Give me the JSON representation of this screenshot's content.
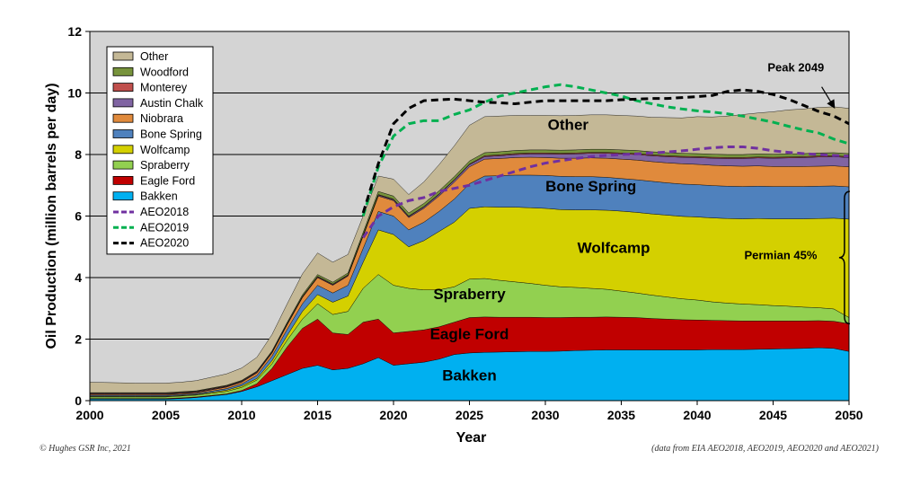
{
  "chart_data": {
    "type": "area",
    "xlabel": "Year",
    "ylabel": "Oil Production (million barrels per day)",
    "xlim": [
      2000,
      2050
    ],
    "ylim": [
      0,
      12
    ],
    "x_ticks": [
      2000,
      2005,
      2010,
      2015,
      2020,
      2025,
      2030,
      2035,
      2040,
      2045,
      2050
    ],
    "x_tick_labels": [
      "2000",
      "2005",
      "2010",
      "2015",
      "2020",
      "2025",
      "2030",
      "2035",
      "2040",
      "2045",
      "2050"
    ],
    "y_ticks": [
      0,
      2,
      4,
      6,
      8,
      10,
      12
    ],
    "y_tick_labels": [
      "0",
      "2",
      "4",
      "6",
      "8",
      "10",
      "12"
    ],
    "grid": "horizontal",
    "background_color": "#d4d4d4",
    "legend_position": "top-left",
    "years": [
      2000,
      2001,
      2002,
      2003,
      2004,
      2005,
      2006,
      2007,
      2008,
      2009,
      2010,
      2011,
      2012,
      2013,
      2014,
      2015,
      2016,
      2017,
      2018,
      2019,
      2020,
      2021,
      2022,
      2023,
      2024,
      2025,
      2026,
      2027,
      2028,
      2029,
      2030,
      2031,
      2032,
      2033,
      2034,
      2035,
      2036,
      2037,
      2038,
      2039,
      2040,
      2041,
      2042,
      2043,
      2044,
      2045,
      2046,
      2047,
      2048,
      2049,
      2050
    ],
    "stack_series": [
      {
        "name": "Bakken",
        "label": "Bakken",
        "color": "#00b0f0",
        "values": [
          0.05,
          0.05,
          0.05,
          0.05,
          0.05,
          0.05,
          0.07,
          0.1,
          0.15,
          0.2,
          0.3,
          0.45,
          0.65,
          0.85,
          1.05,
          1.15,
          1.0,
          1.05,
          1.2,
          1.4,
          1.15,
          1.2,
          1.25,
          1.35,
          1.5,
          1.55,
          1.57,
          1.58,
          1.59,
          1.6,
          1.6,
          1.61,
          1.63,
          1.64,
          1.65,
          1.65,
          1.65,
          1.65,
          1.65,
          1.65,
          1.65,
          1.66,
          1.66,
          1.66,
          1.67,
          1.68,
          1.69,
          1.7,
          1.72,
          1.7,
          1.6
        ]
      },
      {
        "name": "Eagle Ford",
        "label": "Eagle Ford",
        "color": "#c00000",
        "values": [
          0.02,
          0.02,
          0.02,
          0.02,
          0.02,
          0.02,
          0.02,
          0.02,
          0.02,
          0.02,
          0.03,
          0.1,
          0.4,
          0.9,
          1.3,
          1.5,
          1.2,
          1.1,
          1.35,
          1.25,
          1.05,
          1.05,
          1.05,
          1.05,
          1.05,
          1.15,
          1.15,
          1.13,
          1.12,
          1.11,
          1.1,
          1.09,
          1.08,
          1.07,
          1.07,
          1.06,
          1.05,
          1.02,
          1.0,
          0.98,
          0.97,
          0.95,
          0.94,
          0.93,
          0.92,
          0.91,
          0.9,
          0.89,
          0.88,
          0.88,
          0.9
        ]
      },
      {
        "name": "Spraberry",
        "label": "Spraberry",
        "color": "#92d050",
        "values": [
          0.05,
          0.05,
          0.05,
          0.05,
          0.05,
          0.05,
          0.06,
          0.06,
          0.07,
          0.08,
          0.1,
          0.12,
          0.15,
          0.22,
          0.3,
          0.5,
          0.6,
          0.75,
          1.1,
          1.45,
          1.55,
          1.4,
          1.3,
          1.2,
          1.15,
          1.25,
          1.25,
          1.2,
          1.15,
          1.1,
          1.05,
          1.0,
          0.97,
          0.94,
          0.9,
          0.85,
          0.8,
          0.76,
          0.72,
          0.68,
          0.65,
          0.6,
          0.57,
          0.55,
          0.53,
          0.5,
          0.48,
          0.45,
          0.42,
          0.4,
          0.2
        ]
      },
      {
        "name": "Wolfcamp",
        "label": "Wolfcamp",
        "color": "#d4d000",
        "values": [
          0.02,
          0.02,
          0.02,
          0.02,
          0.02,
          0.02,
          0.02,
          0.02,
          0.03,
          0.04,
          0.05,
          0.05,
          0.1,
          0.15,
          0.25,
          0.3,
          0.4,
          0.5,
          0.85,
          1.45,
          1.65,
          1.35,
          1.6,
          1.9,
          2.1,
          2.3,
          2.33,
          2.38,
          2.43,
          2.46,
          2.5,
          2.51,
          2.52,
          2.55,
          2.57,
          2.6,
          2.62,
          2.64,
          2.66,
          2.68,
          2.7,
          2.73,
          2.75,
          2.77,
          2.8,
          2.82,
          2.84,
          2.87,
          2.9,
          2.95,
          3.2
        ]
      },
      {
        "name": "Bone Spring",
        "label": "Bone Spring",
        "color": "#4f81bd",
        "values": [
          0.03,
          0.03,
          0.03,
          0.03,
          0.03,
          0.03,
          0.03,
          0.03,
          0.04,
          0.05,
          0.06,
          0.1,
          0.15,
          0.2,
          0.25,
          0.3,
          0.3,
          0.35,
          0.45,
          0.6,
          0.6,
          0.55,
          0.6,
          0.65,
          0.75,
          0.8,
          1.0,
          1.02,
          1.04,
          1.06,
          1.07,
          1.08,
          1.08,
          1.08,
          1.07,
          1.06,
          1.06,
          1.06,
          1.05,
          1.05,
          1.05,
          1.05,
          1.05,
          1.05,
          1.05,
          1.05,
          1.05,
          1.05,
          1.05,
          1.05,
          1.05
        ]
      },
      {
        "name": "Niobrara",
        "label": "Niobrara",
        "color": "#e08a3c",
        "values": [
          0.03,
          0.03,
          0.03,
          0.03,
          0.03,
          0.03,
          0.03,
          0.03,
          0.04,
          0.05,
          0.06,
          0.08,
          0.1,
          0.15,
          0.2,
          0.25,
          0.25,
          0.3,
          0.4,
          0.5,
          0.5,
          0.4,
          0.45,
          0.5,
          0.55,
          0.55,
          0.55,
          0.56,
          0.57,
          0.58,
          0.58,
          0.59,
          0.6,
          0.61,
          0.62,
          0.63,
          0.64,
          0.64,
          0.65,
          0.66,
          0.66,
          0.66,
          0.66,
          0.66,
          0.66,
          0.65,
          0.65,
          0.65,
          0.65,
          0.65,
          0.65
        ]
      },
      {
        "name": "Austin Chalk",
        "label": "Austin Chalk",
        "color": "#8064a2",
        "values": [
          0.02,
          0.02,
          0.02,
          0.02,
          0.02,
          0.02,
          0.02,
          0.02,
          0.02,
          0.02,
          0.02,
          0.02,
          0.02,
          0.02,
          0.02,
          0.02,
          0.02,
          0.02,
          0.02,
          0.03,
          0.03,
          0.03,
          0.04,
          0.05,
          0.06,
          0.07,
          0.08,
          0.09,
          0.1,
          0.11,
          0.12,
          0.13,
          0.14,
          0.15,
          0.16,
          0.17,
          0.18,
          0.19,
          0.2,
          0.21,
          0.22,
          0.23,
          0.24,
          0.25,
          0.26,
          0.27,
          0.28,
          0.29,
          0.3,
          0.3,
          0.3
        ]
      },
      {
        "name": "Monterey",
        "label": "Monterey",
        "color": "#c0504d",
        "values": [
          0.02,
          0.02,
          0.02,
          0.02,
          0.02,
          0.02,
          0.02,
          0.02,
          0.02,
          0.02,
          0.02,
          0.02,
          0.02,
          0.02,
          0.02,
          0.02,
          0.02,
          0.02,
          0.02,
          0.02,
          0.02,
          0.02,
          0.02,
          0.02,
          0.02,
          0.02,
          0.03,
          0.03,
          0.03,
          0.03,
          0.03,
          0.03,
          0.03,
          0.03,
          0.03,
          0.03,
          0.03,
          0.03,
          0.03,
          0.03,
          0.03,
          0.03,
          0.03,
          0.03,
          0.03,
          0.03,
          0.03,
          0.03,
          0.03,
          0.03,
          0.03
        ]
      },
      {
        "name": "Woodford",
        "label": "Woodford",
        "color": "#77933c",
        "values": [
          0.02,
          0.02,
          0.02,
          0.02,
          0.02,
          0.02,
          0.02,
          0.02,
          0.02,
          0.02,
          0.02,
          0.02,
          0.03,
          0.04,
          0.05,
          0.06,
          0.06,
          0.06,
          0.08,
          0.1,
          0.1,
          0.1,
          0.1,
          0.1,
          0.1,
          0.1,
          0.1,
          0.1,
          0.1,
          0.1,
          0.1,
          0.1,
          0.1,
          0.1,
          0.1,
          0.1,
          0.1,
          0.1,
          0.1,
          0.1,
          0.1,
          0.1,
          0.1,
          0.1,
          0.1,
          0.1,
          0.1,
          0.1,
          0.1,
          0.1,
          0.1
        ]
      },
      {
        "name": "Other",
        "label": "Other",
        "color": "#c4b896",
        "values": [
          0.34,
          0.33,
          0.32,
          0.31,
          0.31,
          0.31,
          0.31,
          0.33,
          0.35,
          0.37,
          0.4,
          0.45,
          0.53,
          0.6,
          0.68,
          0.7,
          0.65,
          0.6,
          0.53,
          0.5,
          0.55,
          0.6,
          0.7,
          0.85,
          1.0,
          1.16,
          1.17,
          1.16,
          1.14,
          1.12,
          1.12,
          1.12,
          1.12,
          1.12,
          1.12,
          1.12,
          1.12,
          1.12,
          1.14,
          1.15,
          1.2,
          1.21,
          1.25,
          1.3,
          1.33,
          1.38,
          1.43,
          1.45,
          1.48,
          1.49,
          1.47
        ]
      }
    ],
    "line_series": [
      {
        "name": "AEO2018",
        "color": "#7030a0",
        "values": [
          null,
          null,
          null,
          null,
          null,
          null,
          null,
          null,
          null,
          null,
          null,
          null,
          null,
          null,
          null,
          null,
          null,
          null,
          5.3,
          6.0,
          6.3,
          6.5,
          6.6,
          6.8,
          6.9,
          7.0,
          7.15,
          7.3,
          7.45,
          7.6,
          7.72,
          7.8,
          7.87,
          7.93,
          7.97,
          8.0,
          8.02,
          8.05,
          8.08,
          8.12,
          8.17,
          8.22,
          8.25,
          8.25,
          8.2,
          8.12,
          8.07,
          8.03,
          8.0,
          7.97,
          7.95
        ]
      },
      {
        "name": "AEO2019",
        "color": "#00b050",
        "values": [
          null,
          null,
          null,
          null,
          null,
          null,
          null,
          null,
          null,
          null,
          null,
          null,
          null,
          null,
          null,
          null,
          null,
          null,
          6.0,
          7.6,
          8.6,
          9.0,
          9.1,
          9.1,
          9.3,
          9.45,
          9.7,
          9.9,
          10.0,
          10.1,
          10.2,
          10.27,
          10.2,
          10.1,
          10.0,
          9.9,
          9.75,
          9.65,
          9.55,
          9.48,
          9.42,
          9.38,
          9.32,
          9.25,
          9.15,
          9.05,
          8.92,
          8.8,
          8.7,
          8.5,
          8.35
        ]
      },
      {
        "name": "AEO2020",
        "color": "#000000",
        "values": [
          null,
          null,
          null,
          null,
          null,
          null,
          null,
          null,
          null,
          null,
          null,
          null,
          null,
          null,
          null,
          null,
          null,
          null,
          6.1,
          7.7,
          9.0,
          9.5,
          9.75,
          9.78,
          9.8,
          9.75,
          9.7,
          9.68,
          9.65,
          9.7,
          9.75,
          9.75,
          9.75,
          9.75,
          9.75,
          9.78,
          9.8,
          9.82,
          9.82,
          9.85,
          9.88,
          9.92,
          10.05,
          10.1,
          10.05,
          9.95,
          9.8,
          9.6,
          9.4,
          9.25,
          9.0
        ]
      }
    ],
    "legend": {
      "items": [
        {
          "label": "Other",
          "kind": "box",
          "color": "#c4b896"
        },
        {
          "label": "Woodford",
          "kind": "box",
          "color": "#77933c"
        },
        {
          "label": "Monterey",
          "kind": "box",
          "color": "#c0504d"
        },
        {
          "label": "Austin Chalk",
          "kind": "box",
          "color": "#8064a2"
        },
        {
          "label": "Niobrara",
          "kind": "box",
          "color": "#e08a3c"
        },
        {
          "label": "Bone Spring",
          "kind": "box",
          "color": "#4f81bd"
        },
        {
          "label": "Wolfcamp",
          "kind": "box",
          "color": "#d4d000"
        },
        {
          "label": "Spraberry",
          "kind": "box",
          "color": "#92d050"
        },
        {
          "label": "Eagle Ford",
          "kind": "box",
          "color": "#c00000"
        },
        {
          "label": "Bakken",
          "kind": "box",
          "color": "#00b0f0"
        },
        {
          "label": "AEO2018",
          "kind": "dash",
          "color": "#7030a0"
        },
        {
          "label": "AEO2019",
          "kind": "dash",
          "color": "#00b050"
        },
        {
          "label": "AEO2020",
          "kind": "dash",
          "color": "#000000"
        }
      ]
    },
    "annotations": [
      {
        "text": "Other",
        "x": 2031.5,
        "y": 8.8
      },
      {
        "text": "Bone Spring",
        "x": 2033,
        "y": 6.8
      },
      {
        "text": "Wolfcamp",
        "x": 2034.5,
        "y": 4.8
      },
      {
        "text": "Spraberry",
        "x": 2025,
        "y": 3.3
      },
      {
        "text": "Eagle Ford",
        "x": 2025,
        "y": 2.0
      },
      {
        "text": "Bakken",
        "x": 2025,
        "y": 0.65
      },
      {
        "text": "Permian 45%",
        "x": 2045.5,
        "y": 4.6
      },
      {
        "text": "Peak 2049",
        "x": 2046.5,
        "y": 10.7
      }
    ],
    "peak_marker": {
      "x_from": 2048.2,
      "y_from": 10.2,
      "x_to": 2049,
      "y_to": 9.55
    },
    "permian_brace": {
      "x": 2049.7,
      "y_from": 2.5,
      "y_to": 6.8
    }
  },
  "footer": {
    "copyright": "© Hughes GSR Inc, 2021",
    "source": "(data from EIA AEO2018, AEO2019, AEO2020 and AEO2021)"
  }
}
